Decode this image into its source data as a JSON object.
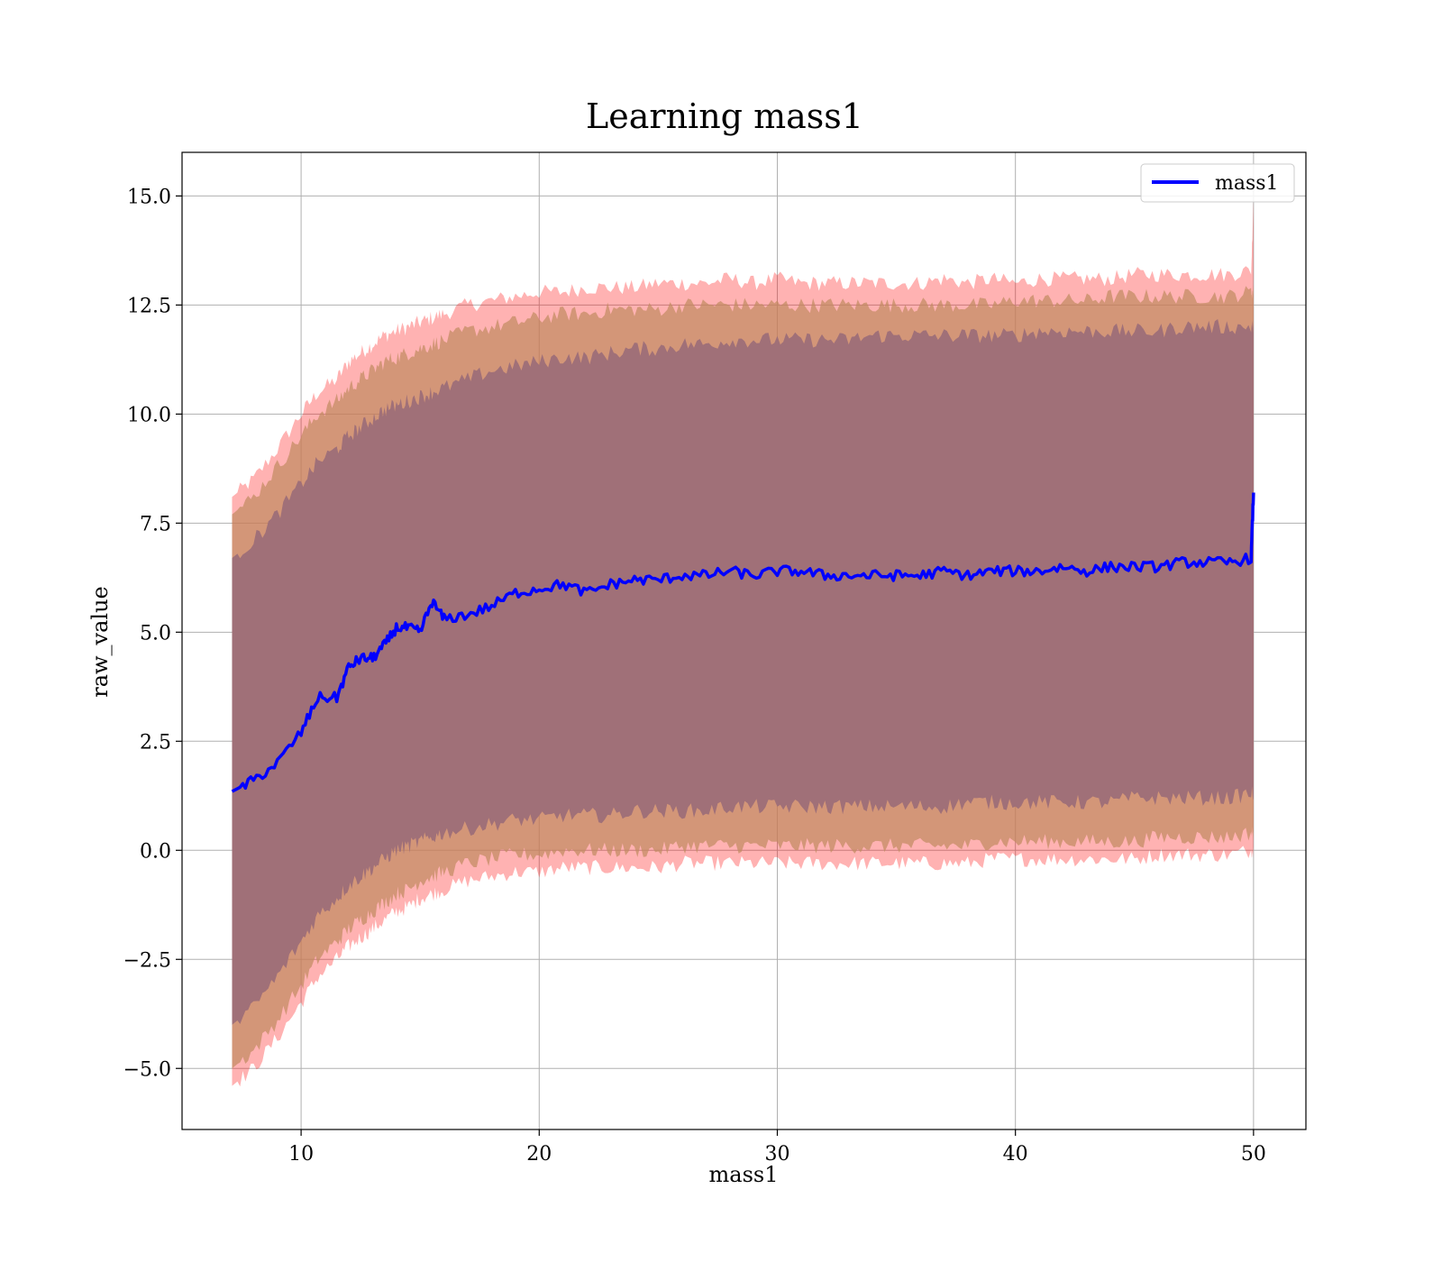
{
  "chart_data": {
    "type": "line",
    "title": "Learning mass1",
    "xlabel": "mass1",
    "ylabel": "raw_value",
    "xlim": [
      5,
      52.2
    ],
    "ylim": [
      -6.4,
      16.0
    ],
    "x_ticks": [
      10,
      20,
      30,
      40,
      50
    ],
    "x_tick_labels": [
      "10",
      "20",
      "30",
      "40",
      "50"
    ],
    "y_ticks": [
      -5.0,
      -2.5,
      0.0,
      2.5,
      5.0,
      7.5,
      10.0,
      12.5,
      15.0
    ],
    "y_tick_labels": [
      "−5.0",
      "−2.5",
      "0.0",
      "2.5",
      "5.0",
      "7.5",
      "10.0",
      "12.5",
      "15.0"
    ],
    "grid": true,
    "legend": {
      "position": "top-right",
      "entries": [
        "mass1"
      ]
    },
    "x": [
      7.1,
      8,
      9,
      10,
      10.7,
      11.5,
      12,
      12.5,
      13,
      13.5,
      14,
      14.5,
      15,
      15.5,
      16,
      17,
      18,
      19,
      20,
      21,
      22,
      23,
      24,
      25,
      26,
      27,
      28,
      29,
      30,
      31,
      32,
      33,
      34,
      35,
      36,
      37,
      38,
      39,
      40,
      41,
      42,
      43,
      44,
      45,
      46,
      47,
      48,
      49,
      49.9,
      50
    ],
    "series": [
      {
        "name": "mass1",
        "color": "#0000ff",
        "values": [
          1.35,
          1.6,
          2.0,
          2.7,
          3.5,
          3.5,
          4.2,
          4.4,
          4.4,
          4.7,
          5.1,
          5.1,
          5.0,
          5.7,
          5.3,
          5.4,
          5.6,
          5.9,
          6.0,
          6.1,
          5.9,
          6.1,
          6.2,
          6.2,
          6.3,
          6.3,
          6.4,
          6.3,
          6.4,
          6.4,
          6.3,
          6.3,
          6.3,
          6.3,
          6.3,
          6.4,
          6.3,
          6.4,
          6.4,
          6.4,
          6.5,
          6.4,
          6.5,
          6.5,
          6.5,
          6.6,
          6.6,
          6.6,
          6.7,
          8.2
        ]
      }
    ],
    "bands": [
      {
        "name": "outer",
        "color": "#ff0000",
        "opacity": 0.3,
        "upper": [
          8.1,
          8.5,
          9.2,
          10.0,
          10.5,
          10.8,
          11.2,
          11.4,
          11.6,
          11.8,
          11.9,
          12.0,
          12.1,
          12.2,
          12.3,
          12.5,
          12.6,
          12.7,
          12.8,
          12.8,
          12.9,
          12.9,
          12.9,
          13.0,
          13.0,
          13.0,
          13.1,
          13.0,
          13.1,
          13.0,
          13.0,
          13.0,
          13.0,
          13.0,
          13.0,
          13.1,
          13.0,
          13.1,
          13.0,
          13.1,
          13.1,
          13.1,
          13.1,
          13.2,
          13.2,
          13.2,
          13.2,
          13.2,
          13.3,
          14.9
        ],
        "lower": [
          -5.4,
          -5.0,
          -4.3,
          -3.5,
          -2.9,
          -2.5,
          -2.2,
          -2.0,
          -1.8,
          -1.6,
          -1.4,
          -1.3,
          -1.1,
          -1.0,
          -0.9,
          -0.7,
          -0.6,
          -0.5,
          -0.5,
          -0.4,
          -0.4,
          -0.4,
          -0.4,
          -0.4,
          -0.3,
          -0.3,
          -0.3,
          -0.3,
          -0.3,
          -0.3,
          -0.3,
          -0.3,
          -0.3,
          -0.3,
          -0.3,
          -0.3,
          -0.3,
          -0.2,
          -0.2,
          -0.2,
          -0.2,
          -0.2,
          -0.2,
          -0.2,
          -0.1,
          -0.1,
          -0.1,
          -0.1,
          0.0,
          0.0
        ]
      },
      {
        "name": "middle",
        "color": "#c08a60",
        "opacity": 0.7,
        "upper": [
          7.7,
          8.1,
          8.8,
          9.5,
          10.0,
          10.3,
          10.6,
          10.8,
          11.0,
          11.2,
          11.3,
          11.4,
          11.5,
          11.6,
          11.7,
          11.9,
          12.0,
          12.1,
          12.2,
          12.3,
          12.3,
          12.4,
          12.4,
          12.4,
          12.5,
          12.5,
          12.5,
          12.5,
          12.5,
          12.5,
          12.5,
          12.5,
          12.5,
          12.5,
          12.5,
          12.5,
          12.5,
          12.5,
          12.6,
          12.6,
          12.6,
          12.6,
          12.7,
          12.7,
          12.7,
          12.7,
          12.7,
          12.7,
          12.8,
          12.8
        ],
        "lower": [
          -5.0,
          -4.6,
          -3.9,
          -3.1,
          -2.5,
          -2.1,
          -1.8,
          -1.6,
          -1.4,
          -1.2,
          -1.0,
          -0.9,
          -0.7,
          -0.6,
          -0.5,
          -0.3,
          -0.2,
          -0.1,
          -0.1,
          0.0,
          0.0,
          0.0,
          0.0,
          0.0,
          0.1,
          0.1,
          0.1,
          0.1,
          0.1,
          0.1,
          0.1,
          0.1,
          0.1,
          0.1,
          0.1,
          0.1,
          0.1,
          0.2,
          0.2,
          0.2,
          0.2,
          0.2,
          0.2,
          0.2,
          0.3,
          0.3,
          0.3,
          0.3,
          0.4,
          0.4
        ]
      },
      {
        "name": "inner",
        "color": "#a07078",
        "opacity": 1.0,
        "upper": [
          6.7,
          7.1,
          7.7,
          8.4,
          8.9,
          9.2,
          9.5,
          9.7,
          9.9,
          10.1,
          10.2,
          10.3,
          10.4,
          10.5,
          10.6,
          10.8,
          11.0,
          11.1,
          11.2,
          11.3,
          11.3,
          11.4,
          11.5,
          11.5,
          11.6,
          11.6,
          11.7,
          11.7,
          11.7,
          11.7,
          11.7,
          11.7,
          11.8,
          11.8,
          11.8,
          11.8,
          11.8,
          11.8,
          11.8,
          11.9,
          11.9,
          11.9,
          11.9,
          11.9,
          11.9,
          12.0,
          12.0,
          12.0,
          12.0,
          12.0
        ],
        "lower": [
          -4.0,
          -3.6,
          -2.9,
          -2.1,
          -1.5,
          -1.1,
          -0.8,
          -0.6,
          -0.4,
          -0.2,
          0.0,
          0.1,
          0.2,
          0.3,
          0.4,
          0.5,
          0.6,
          0.7,
          0.7,
          0.8,
          0.8,
          0.8,
          0.9,
          0.9,
          0.9,
          0.9,
          1.0,
          1.0,
          1.0,
          1.0,
          1.0,
          1.0,
          1.0,
          1.0,
          1.0,
          1.0,
          1.1,
          1.1,
          1.1,
          1.1,
          1.1,
          1.1,
          1.1,
          1.2,
          1.2,
          1.2,
          1.2,
          1.2,
          1.3,
          1.3
        ]
      }
    ]
  }
}
